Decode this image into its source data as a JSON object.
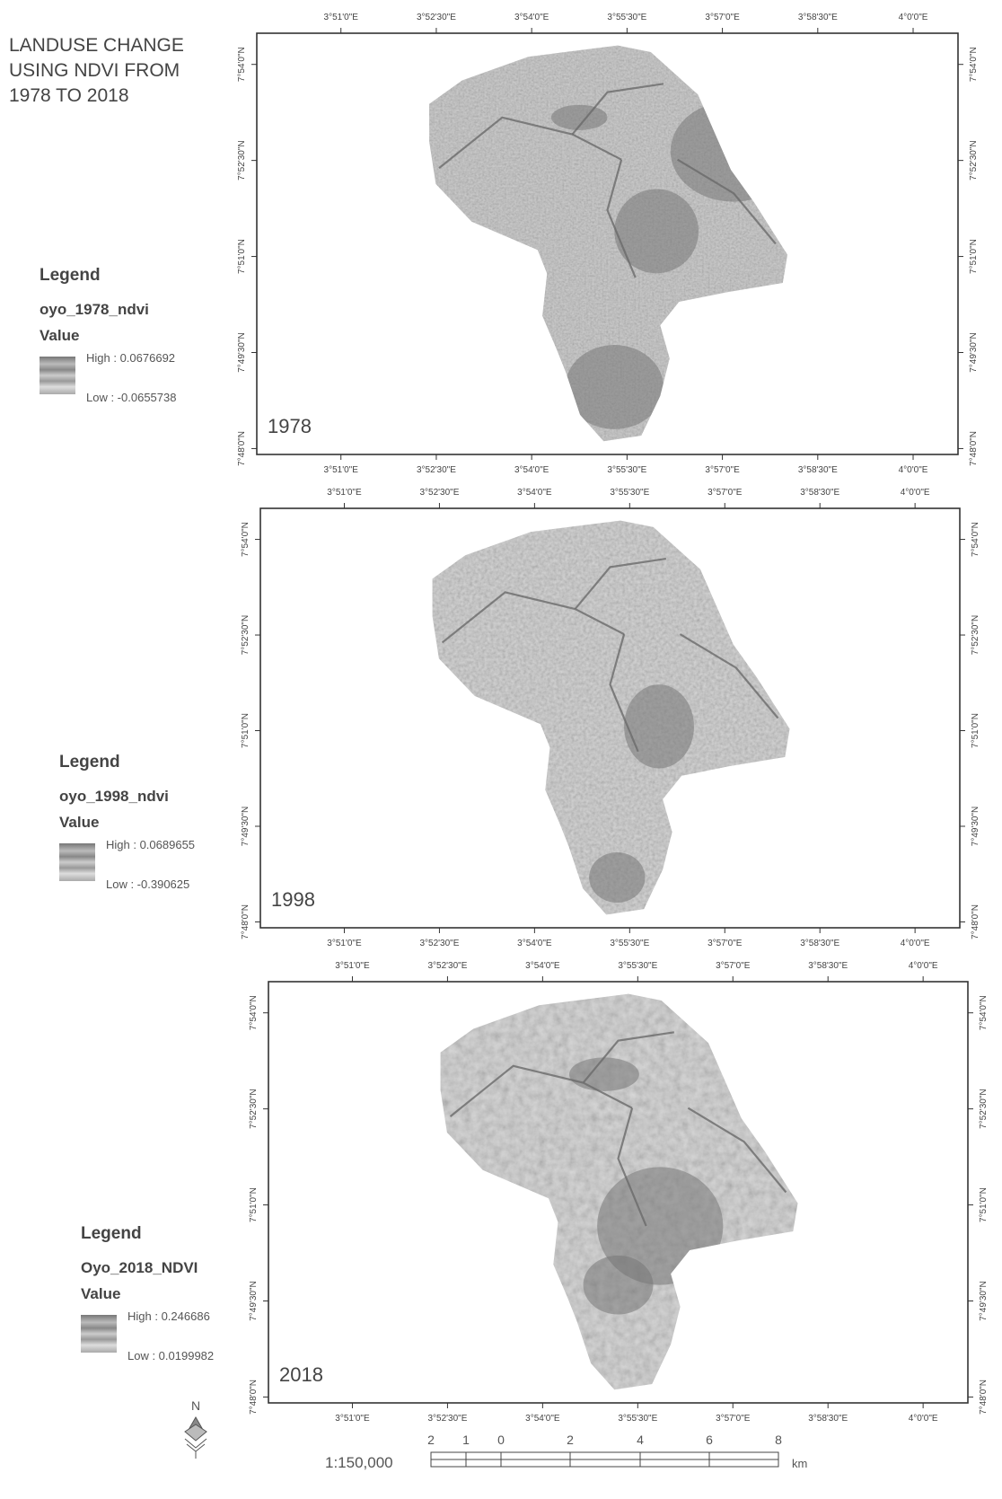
{
  "title_lines": [
    "LANDUSE CHANGE",
    "USING NDVI FROM",
    "1978 TO 2018"
  ],
  "x_ticks": [
    "3°51'0\"E",
    "3°52'30\"E",
    "3°54'0\"E",
    "3°55'30\"E",
    "3°57'0\"E",
    "3°58'30\"E",
    "4°0'0\"E"
  ],
  "y_ticks": [
    "7°54'0\"N",
    "7°52'30\"N",
    "7°51'0\"N",
    "7°49'30\"N",
    "7°48'0\"N"
  ],
  "panels": [
    {
      "year": "1978",
      "legend": {
        "heading": "Legend",
        "layer": "oyo_1978_ndvi",
        "field": "Value",
        "high": "High : 0.0676692",
        "low": "Low : -0.0655738"
      }
    },
    {
      "year": "1998",
      "legend": {
        "heading": "Legend",
        "layer": "oyo_1998_ndvi",
        "field": "Value",
        "high": "High : 0.0689655",
        "low": "Low : -0.390625"
      }
    },
    {
      "year": "2018",
      "legend": {
        "heading": "Legend",
        "layer": "Oyo_2018_NDVI",
        "field": "Value",
        "high": "High : 0.246686",
        "low": "Low : 0.0199982"
      }
    }
  ],
  "scale": {
    "ratio": "1:150,000",
    "labels": [
      2,
      1,
      0,
      2,
      4,
      6,
      8
    ],
    "unit": "km"
  },
  "north": "N"
}
